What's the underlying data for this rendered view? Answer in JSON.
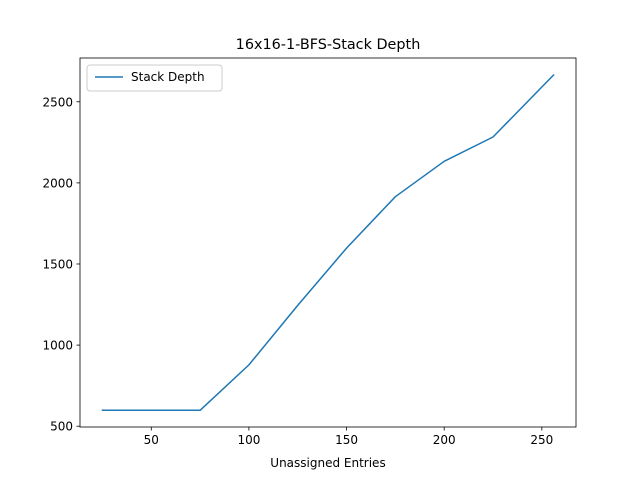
{
  "chart_data": {
    "type": "line",
    "title": "16x16-1-BFS-Stack Depth",
    "xlabel": "Unassigned Entries",
    "ylabel": "",
    "xlim": [
      13.5,
      267.5
    ],
    "ylim": [
      495,
      2770
    ],
    "xticks": [
      50,
      100,
      150,
      200,
      250
    ],
    "yticks": [
      500,
      1000,
      1500,
      2000,
      2500
    ],
    "grid": false,
    "legend_position": "top-left",
    "series": [
      {
        "name": "Stack Depth",
        "color": "#1f77b4",
        "x": [
          25,
          50,
          75,
          100,
          125,
          150,
          175,
          200,
          225,
          256
        ],
        "y": [
          598,
          598,
          598,
          878,
          1245,
          1598,
          1915,
          2133,
          2283,
          2665
        ]
      }
    ]
  }
}
